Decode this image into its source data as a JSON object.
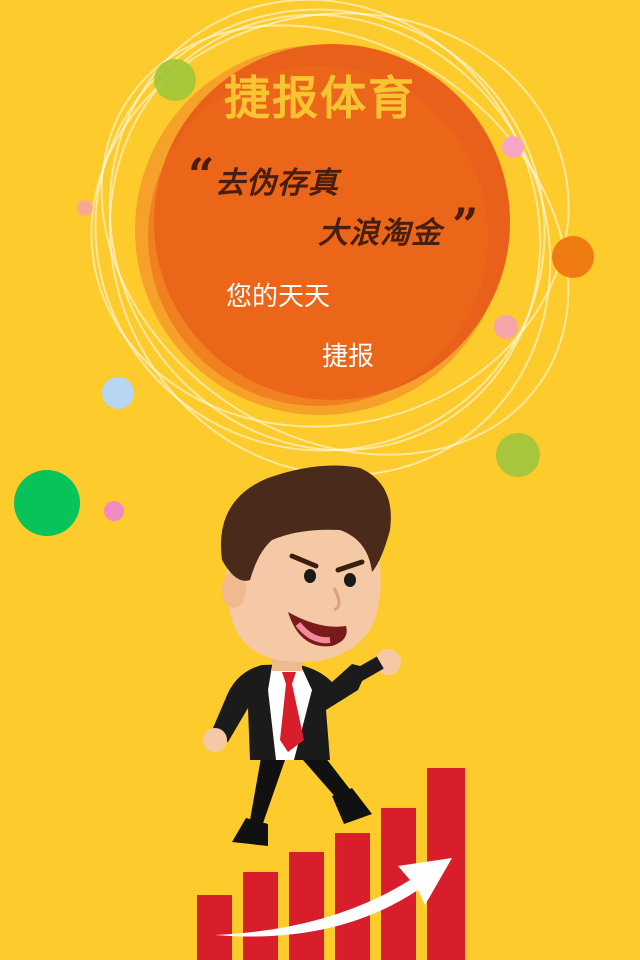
{
  "poster": {
    "brand_title": "捷报体育",
    "slogan_line1": "去伪存真",
    "slogan_line2": "大浪淘金",
    "quote_open": "“",
    "quote_close": "”",
    "tagline_line1": "您的天天",
    "tagline_line2": "捷报"
  },
  "colors": {
    "background": "#FDCB2B",
    "circle": "#E8601A",
    "title": "#F7C531",
    "slogan": "#4A1E0C",
    "bars": "#D81E2A",
    "tie": "#D81E2A"
  },
  "icons": {
    "character": "businessman-illustration",
    "chart": "rising-bar-chart-icon",
    "arrow": "growth-arrow-icon"
  }
}
